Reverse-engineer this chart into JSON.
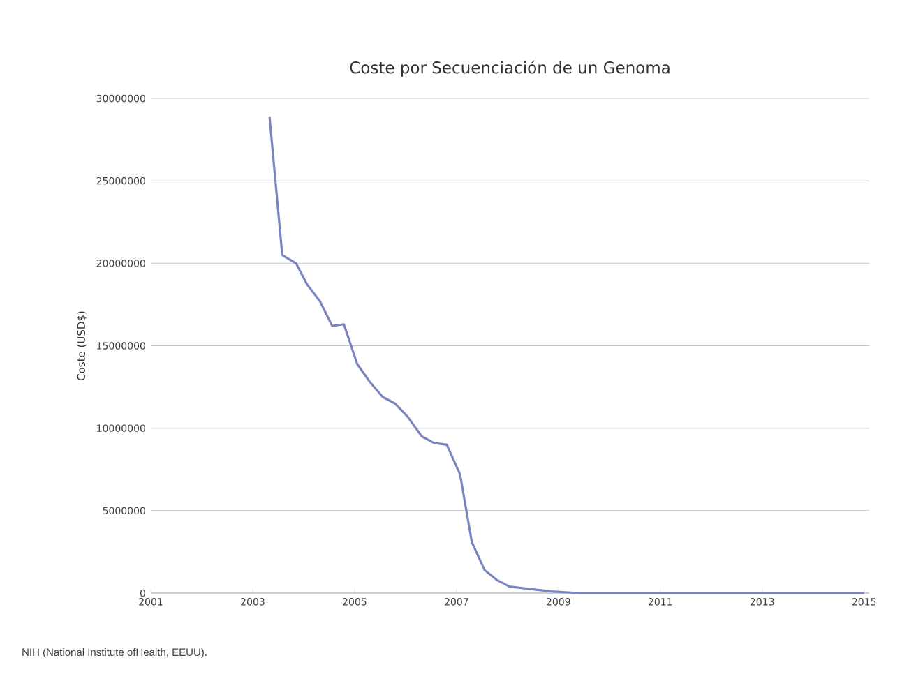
{
  "chart_data": {
    "type": "line",
    "title": "Coste por Secuenciación de un  Genoma",
    "ylabel": "Coste (USD$)",
    "x": [
      2003.33,
      2003.58,
      2003.85,
      2004.07,
      2004.32,
      2004.56,
      2004.79,
      2005.05,
      2005.3,
      2005.55,
      2005.79,
      2006.04,
      2006.32,
      2006.56,
      2006.81,
      2007.07,
      2007.3,
      2007.55,
      2007.79,
      2008.04,
      2008.86,
      2009.41,
      2015.0
    ],
    "values": [
      28900000,
      20500000,
      20000000,
      18700000,
      17700000,
      16200000,
      16300000,
      13900000,
      12800000,
      11900000,
      11500000,
      10700000,
      9500000,
      9100000,
      9000000,
      7200000,
      3100000,
      1400000,
      800000,
      400000,
      100000,
      0,
      0
    ],
    "color": "#7b86c0",
    "xlim": [
      2001,
      2015.1
    ],
    "xticks": [
      2001,
      2003,
      2005,
      2007,
      2009,
      2011,
      2013,
      2015
    ],
    "ylim": [
      0,
      30000000
    ],
    "yticks": [
      0,
      5000000,
      10000000,
      15000000,
      20000000,
      25000000,
      30000000
    ],
    "grid": "y",
    "annotations": [
      "NIH (National Institute ofHealth, EEUU)."
    ]
  }
}
